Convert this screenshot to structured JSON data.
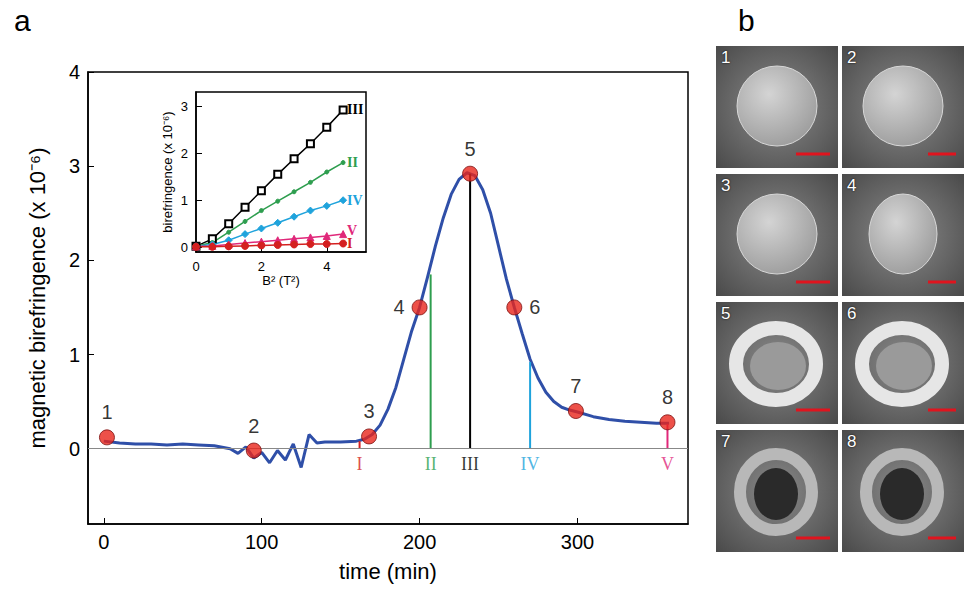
{
  "panel_labels": [
    "a",
    "b"
  ],
  "chart_data": [
    {
      "type": "line",
      "x_label": "time (min)",
      "y_label": "magnetic birefringence (x 10⁻⁶)",
      "xlim": [
        -10,
        370
      ],
      "xticks": [
        0,
        100,
        200,
        300
      ],
      "ylim": [
        -0.8,
        4
      ],
      "yticks": [
        0,
        1,
        2,
        3,
        4
      ],
      "grid": false,
      "baseline": 0,
      "series": [
        {
          "type": "line",
          "color": "#2f4fa8",
          "x": [
            0,
            10,
            20,
            30,
            40,
            50,
            60,
            70,
            80,
            85,
            90,
            95,
            100,
            105,
            110,
            115,
            120,
            125,
            130,
            135,
            140,
            150,
            160,
            165,
            170,
            175,
            180,
            185,
            190,
            195,
            200,
            205,
            210,
            215,
            220,
            225,
            230,
            235,
            240,
            245,
            250,
            255,
            260,
            265,
            270,
            275,
            280,
            285,
            290,
            295,
            300,
            310,
            320,
            330,
            340,
            350,
            358
          ],
          "values": [
            0.08,
            0.06,
            0.05,
            0.05,
            0.04,
            0.05,
            0.04,
            0.03,
            0.0,
            -0.05,
            0.02,
            -0.1,
            -0.04,
            -0.15,
            -0.02,
            -0.12,
            0.05,
            -0.2,
            0.15,
            0.06,
            0.07,
            0.07,
            0.08,
            0.1,
            0.15,
            0.25,
            0.42,
            0.65,
            0.95,
            1.25,
            1.5,
            1.82,
            2.15,
            2.45,
            2.7,
            2.86,
            2.93,
            2.9,
            2.75,
            2.5,
            2.15,
            1.8,
            1.5,
            1.22,
            0.95,
            0.75,
            0.6,
            0.5,
            0.44,
            0.41,
            0.39,
            0.34,
            0.31,
            0.29,
            0.28,
            0.27,
            0.27
          ]
        },
        {
          "type": "scatter",
          "color": "#e8261c",
          "marker": "circle",
          "x": [
            2,
            95,
            168,
            200,
            232,
            260,
            299,
            357
          ],
          "values": [
            0.12,
            -0.02,
            0.13,
            1.5,
            2.92,
            1.5,
            0.4,
            0.28
          ],
          "labels": [
            "1",
            "2",
            "3",
            "4",
            "5",
            "6",
            "7",
            "8"
          ]
        }
      ],
      "annotations": [
        {
          "label": "I",
          "x": 162,
          "y_from": 0,
          "y_to": 0.08,
          "color": "#d42020"
        },
        {
          "label": "II",
          "x": 207,
          "y_from": 0,
          "y_to": 1.85,
          "color": "#2e9e4f"
        },
        {
          "label": "III",
          "x": 232,
          "y_from": 0,
          "y_to": 2.92,
          "color": "#000000"
        },
        {
          "label": "IV",
          "x": 270,
          "y_from": 0,
          "y_to": 0.92,
          "color": "#1fa3dc"
        },
        {
          "label": "V",
          "x": 357,
          "y_from": 0,
          "y_to": 0.26,
          "color": "#e0287a"
        }
      ]
    },
    {
      "type": "line",
      "x_label": "B² (T²)",
      "y_label": "birefringence (x 10⁻⁶)",
      "xlim": [
        0,
        5.2
      ],
      "xticks": [
        0,
        2,
        4
      ],
      "ylim": [
        -0.1,
        3.3
      ],
      "yticks": [
        0,
        1,
        2,
        3
      ],
      "grid": false,
      "series": [
        {
          "name": "III",
          "color": "#000000",
          "marker": "open-square",
          "x": [
            0,
            0.5,
            1,
            1.5,
            2,
            2.5,
            3,
            3.5,
            4,
            4.5
          ],
          "values": [
            0.02,
            0.18,
            0.5,
            0.85,
            1.2,
            1.55,
            1.88,
            2.2,
            2.55,
            2.92
          ]
        },
        {
          "name": "II",
          "color": "#2e9e4f",
          "marker": "dot",
          "x": [
            0,
            0.5,
            1,
            1.5,
            2,
            2.5,
            3,
            3.5,
            4,
            4.5
          ],
          "values": [
            0.02,
            0.1,
            0.32,
            0.55,
            0.78,
            0.98,
            1.18,
            1.38,
            1.6,
            1.8
          ]
        },
        {
          "name": "IV",
          "color": "#1fa3dc",
          "marker": "diamond",
          "x": [
            0,
            0.5,
            1,
            1.5,
            2,
            2.5,
            3,
            3.5,
            4,
            4.5
          ],
          "values": [
            0.02,
            0.06,
            0.15,
            0.28,
            0.4,
            0.52,
            0.65,
            0.78,
            0.88,
            1.0
          ]
        },
        {
          "name": "V",
          "color": "#e0287a",
          "marker": "triangle",
          "x": [
            0,
            0.5,
            1,
            1.5,
            2,
            2.5,
            3,
            3.5,
            4,
            4.5
          ],
          "values": [
            0.02,
            0.03,
            0.06,
            0.09,
            0.12,
            0.15,
            0.18,
            0.21,
            0.24,
            0.28
          ]
        },
        {
          "name": "I",
          "color": "#d42020",
          "marker": "circle",
          "x": [
            0,
            0.5,
            1,
            1.5,
            2,
            2.5,
            3,
            3.5,
            4,
            4.5
          ],
          "values": [
            0.01,
            0.01,
            0.02,
            0.03,
            0.04,
            0.05,
            0.06,
            0.07,
            0.07,
            0.08
          ]
        }
      ]
    }
  ],
  "micrographs": {
    "labels": [
      "1",
      "2",
      "3",
      "4",
      "5",
      "6",
      "7",
      "8"
    ]
  }
}
